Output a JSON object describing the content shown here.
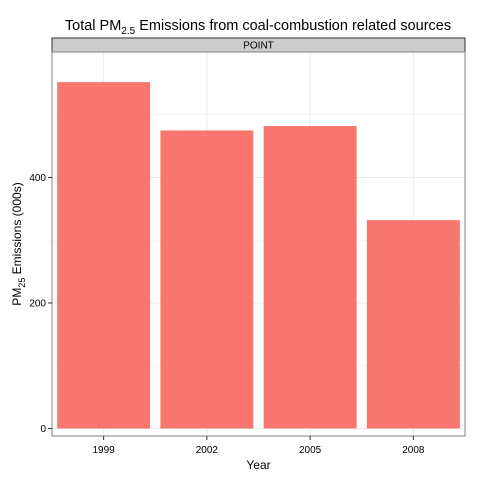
{
  "chart_data": {
    "type": "bar",
    "title": {
      "main": "Total PM",
      "subscript": "2.5",
      "rest": " Emissions from coal-combustion related sources"
    },
    "facet_label": "POINT",
    "categories": [
      "1999",
      "2002",
      "2005",
      "2008"
    ],
    "values": [
      552,
      475,
      482,
      332
    ],
    "xlabel": "Year",
    "ylabel": {
      "main": "PM",
      "subscript": "25",
      "rest": " Emissions (000s)"
    },
    "ylim": [
      -12,
      600
    ],
    "yticks": [
      0,
      200,
      400
    ],
    "grid": true,
    "colors": {
      "bar": "#F8766D",
      "strip_fill": "#CCCCCC",
      "strip_border": "#333333",
      "panel_border": "#808080",
      "grid": "#EBEBEB"
    }
  }
}
